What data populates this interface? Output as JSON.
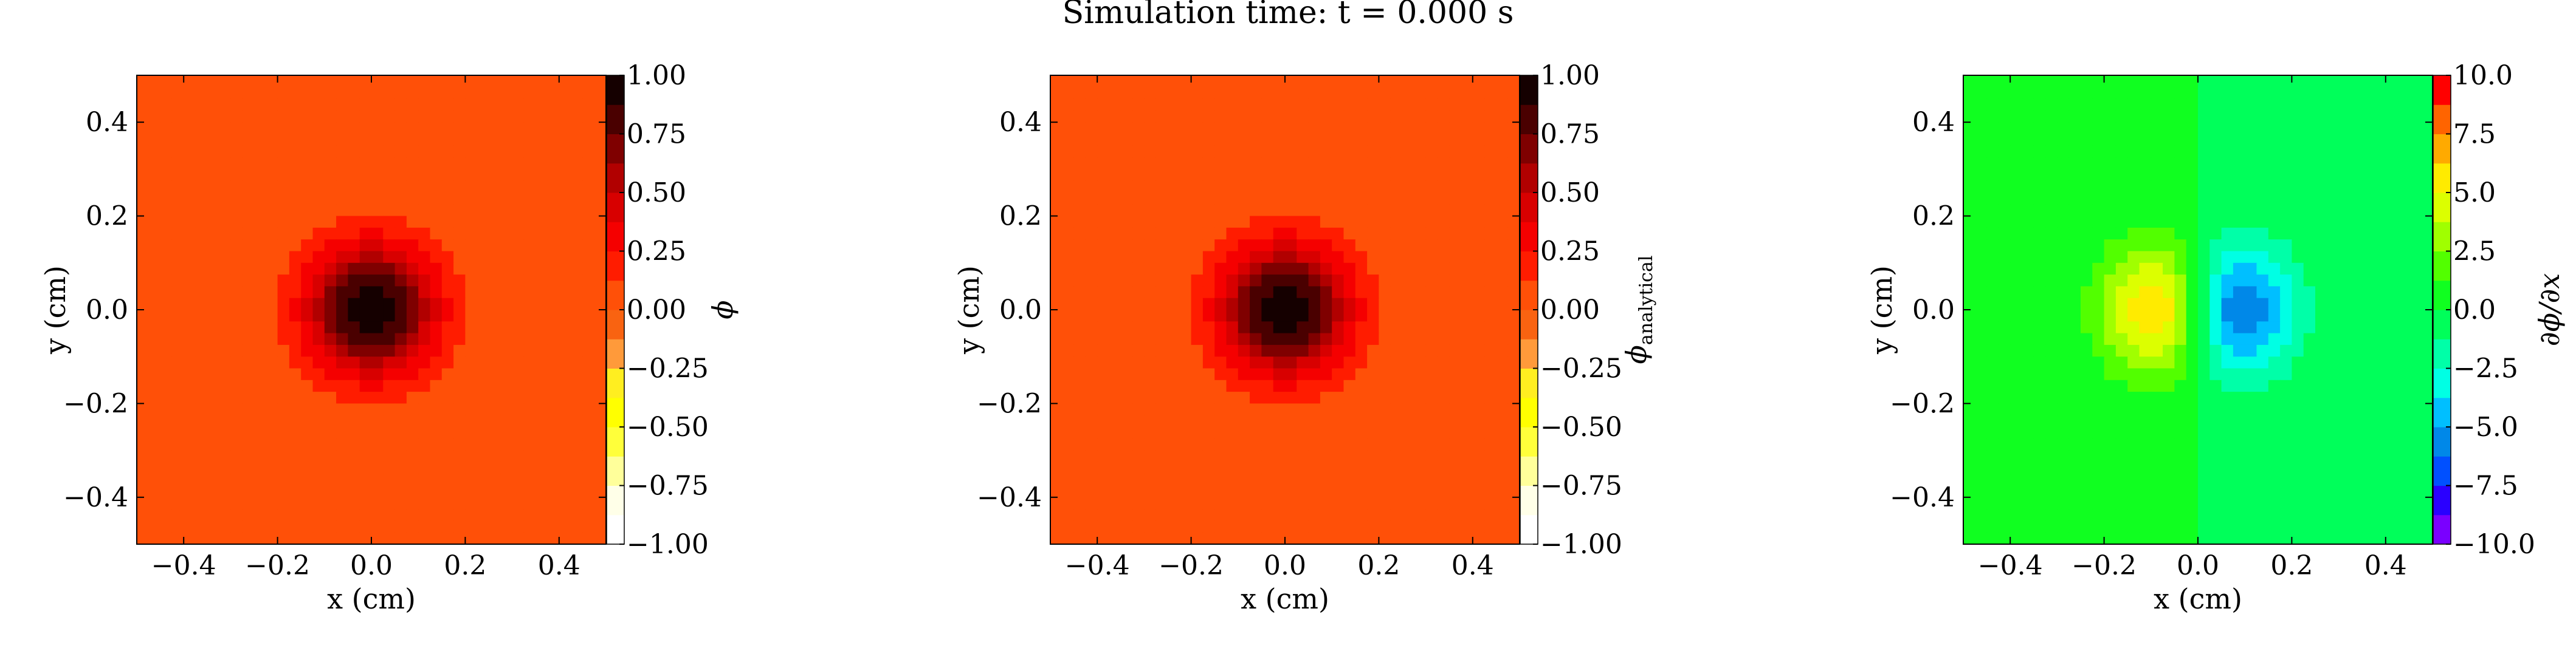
{
  "title": "Simulation time: t = 0.000 s",
  "chart_data": [
    {
      "type": "heatmap",
      "field": "phi",
      "xlabel": "x  (cm)",
      "ylabel": "y  (cm)",
      "colorbar_label": "ϕ",
      "colorbar_sub": "",
      "xlim": [
        -0.5,
        0.5
      ],
      "ylim": [
        -0.5,
        0.5
      ],
      "xticks": [
        "−0.4",
        "−0.2",
        "0.0",
        "0.2",
        "0.4"
      ],
      "xtick_values": [
        -0.4,
        -0.2,
        0.0,
        0.2,
        0.4
      ],
      "yticks": [
        "0.4",
        "0.2",
        "0.0",
        "−0.2",
        "−0.4"
      ],
      "ytick_values": [
        0.4,
        0.2,
        0.0,
        -0.2,
        -0.4
      ],
      "grid": "40x40",
      "value_model": {
        "kind": "gaussian",
        "background": 0.0,
        "amplitude": 1.0,
        "x0": 0.0,
        "y0": 0.0,
        "sigma": 0.1
      },
      "clim": [
        -1.0,
        1.0
      ],
      "cticks": [
        "1.00",
        "0.75",
        "0.50",
        "0.25",
        "0.00",
        "−0.25",
        "−0.50",
        "−0.75",
        "−1.00"
      ],
      "ctick_values": [
        1.0,
        0.75,
        0.5,
        0.25,
        0.0,
        -0.25,
        -0.5,
        -0.75,
        -1.0
      ],
      "colormap": "hot_r",
      "colorbar_segments": [
        {
          "from": -1.0,
          "to": -0.875,
          "color": "#ffffff"
        },
        {
          "from": -0.875,
          "to": -0.75,
          "color": "#ffffe8"
        },
        {
          "from": -0.75,
          "to": -0.625,
          "color": "#ffff9a"
        },
        {
          "from": -0.625,
          "to": -0.5,
          "color": "#ffff3a"
        },
        {
          "from": -0.5,
          "to": -0.375,
          "color": "#ffff00"
        },
        {
          "from": -0.375,
          "to": -0.25,
          "color": "#ffee20"
        },
        {
          "from": -0.25,
          "to": -0.125,
          "color": "#ff9a3a"
        },
        {
          "from": -0.125,
          "to": 0.0,
          "color": "#f96311"
        },
        {
          "from": 0.0,
          "to": 0.125,
          "color": "#ff5008"
        },
        {
          "from": 0.125,
          "to": 0.25,
          "color": "#ff1c00"
        },
        {
          "from": 0.25,
          "to": 0.375,
          "color": "#f50000"
        },
        {
          "from": 0.375,
          "to": 0.5,
          "color": "#d80000"
        },
        {
          "from": 0.5,
          "to": 0.625,
          "color": "#b10000"
        },
        {
          "from": 0.625,
          "to": 0.75,
          "color": "#7f0000"
        },
        {
          "from": 0.75,
          "to": 0.875,
          "color": "#4a0000"
        },
        {
          "from": 0.875,
          "to": 1.0,
          "color": "#150000"
        }
      ]
    },
    {
      "type": "heatmap",
      "field": "phi_analytical",
      "xlabel": "x  (cm)",
      "ylabel": "y  (cm)",
      "colorbar_label": "ϕ",
      "colorbar_sub": "analytical",
      "xlim": [
        -0.5,
        0.5
      ],
      "ylim": [
        -0.5,
        0.5
      ],
      "xticks": [
        "−0.4",
        "−0.2",
        "0.0",
        "0.2",
        "0.4"
      ],
      "xtick_values": [
        -0.4,
        -0.2,
        0.0,
        0.2,
        0.4
      ],
      "yticks": [
        "0.4",
        "0.2",
        "0.0",
        "−0.2",
        "−0.4"
      ],
      "ytick_values": [
        0.4,
        0.2,
        0.0,
        -0.2,
        -0.4
      ],
      "grid": "40x40",
      "value_model": {
        "kind": "gaussian",
        "background": 0.0,
        "amplitude": 1.0,
        "x0": 0.0,
        "y0": 0.0,
        "sigma": 0.1
      },
      "clim": [
        -1.0,
        1.0
      ],
      "cticks": [
        "1.00",
        "0.75",
        "0.50",
        "0.25",
        "0.00",
        "−0.25",
        "−0.50",
        "−0.75",
        "−1.00"
      ],
      "ctick_values": [
        1.0,
        0.75,
        0.5,
        0.25,
        0.0,
        -0.25,
        -0.5,
        -0.75,
        -1.0
      ],
      "colormap": "hot_r",
      "colorbar_segments": [
        {
          "from": -1.0,
          "to": -0.875,
          "color": "#ffffff"
        },
        {
          "from": -0.875,
          "to": -0.75,
          "color": "#ffffe8"
        },
        {
          "from": -0.75,
          "to": -0.625,
          "color": "#ffff9a"
        },
        {
          "from": -0.625,
          "to": -0.5,
          "color": "#ffff3a"
        },
        {
          "from": -0.5,
          "to": -0.375,
          "color": "#ffff00"
        },
        {
          "from": -0.375,
          "to": -0.25,
          "color": "#ffee20"
        },
        {
          "from": -0.25,
          "to": -0.125,
          "color": "#ff9a3a"
        },
        {
          "from": -0.125,
          "to": 0.0,
          "color": "#f96311"
        },
        {
          "from": 0.0,
          "to": 0.125,
          "color": "#ff5008"
        },
        {
          "from": 0.125,
          "to": 0.25,
          "color": "#ff1c00"
        },
        {
          "from": 0.25,
          "to": 0.375,
          "color": "#f50000"
        },
        {
          "from": 0.375,
          "to": 0.5,
          "color": "#d80000"
        },
        {
          "from": 0.5,
          "to": 0.625,
          "color": "#b10000"
        },
        {
          "from": 0.625,
          "to": 0.75,
          "color": "#7f0000"
        },
        {
          "from": 0.75,
          "to": 0.875,
          "color": "#4a0000"
        },
        {
          "from": 0.875,
          "to": 1.0,
          "color": "#150000"
        }
      ]
    },
    {
      "type": "heatmap",
      "field": "dphi_dx",
      "xlabel": "x  (cm)",
      "ylabel": "y  (cm)",
      "colorbar_label": "∂ϕ/∂x",
      "colorbar_sub": "",
      "xlim": [
        -0.5,
        0.5
      ],
      "ylim": [
        -0.5,
        0.5
      ],
      "xticks": [
        "−0.4",
        "−0.2",
        "0.0",
        "0.2",
        "0.4"
      ],
      "xtick_values": [
        -0.4,
        -0.2,
        0.0,
        0.2,
        0.4
      ],
      "yticks": [
        "0.4",
        "0.2",
        "0.0",
        "−0.2",
        "−0.4"
      ],
      "ytick_values": [
        0.4,
        0.2,
        0.0,
        -0.2,
        -0.4
      ],
      "grid": "40x40",
      "value_model": {
        "kind": "gaussian_x_derivative",
        "background": 0.0,
        "amplitude": 1.0,
        "x0": 0.0,
        "y0": 0.0,
        "sigma": 0.1
      },
      "clim": [
        -10.0,
        10.0
      ],
      "cticks": [
        "10.0",
        "7.5",
        "5.0",
        "2.5",
        "0.0",
        "−2.5",
        "−5.0",
        "−7.5",
        "−10.0"
      ],
      "ctick_values": [
        10.0,
        7.5,
        5.0,
        2.5,
        0.0,
        -2.5,
        -5.0,
        -7.5,
        -10.0
      ],
      "colormap": "gist_rainbow",
      "colorbar_segments": [
        {
          "from": -10.0,
          "to": -8.75,
          "color": "#7a00ff"
        },
        {
          "from": -8.75,
          "to": -7.5,
          "color": "#2a00ff"
        },
        {
          "from": -7.5,
          "to": -6.25,
          "color": "#0050ff"
        },
        {
          "from": -6.25,
          "to": -5.0,
          "color": "#0088e8"
        },
        {
          "from": -5.0,
          "to": -3.75,
          "color": "#00bfff"
        },
        {
          "from": -3.75,
          "to": -2.5,
          "color": "#00ffe4"
        },
        {
          "from": -2.5,
          "to": -1.25,
          "color": "#00ffa8"
        },
        {
          "from": -1.25,
          "to": 0.0,
          "color": "#00ff5a"
        },
        {
          "from": 0.0,
          "to": 1.25,
          "color": "#10ff20"
        },
        {
          "from": 1.25,
          "to": 2.5,
          "color": "#52ff00"
        },
        {
          "from": 2.5,
          "to": 3.75,
          "color": "#a0ff00"
        },
        {
          "from": 3.75,
          "to": 5.0,
          "color": "#dcff00"
        },
        {
          "from": 5.0,
          "to": 6.25,
          "color": "#ffeb00"
        },
        {
          "from": 6.25,
          "to": 7.5,
          "color": "#ffaa00"
        },
        {
          "from": 7.5,
          "to": 8.75,
          "color": "#ff6400"
        },
        {
          "from": 8.75,
          "to": 10.0,
          "color": "#ff0000"
        }
      ]
    }
  ]
}
